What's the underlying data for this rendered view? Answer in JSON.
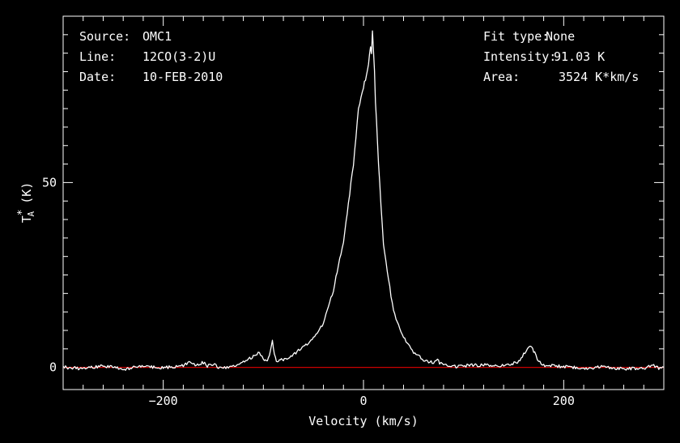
{
  "info": {
    "source_label": "Source:",
    "source_value": "OMC1",
    "line_label": "Line:",
    "line_value": "12CO(3-2)U",
    "date_label": "Date:",
    "date_value": "10-FEB-2010",
    "fit_label": "Fit type:",
    "fit_value": "None",
    "intensity_label": "Intensity:",
    "intensity_value": "91.03 K",
    "area_label": "Area:",
    "area_value": "3524 K*km/s"
  },
  "chart_data": {
    "type": "line",
    "title": "",
    "xlabel": "Velocity (km/s)",
    "ylabel": "T_A* (K)",
    "xlim": [
      -300,
      300
    ],
    "ylim": [
      -6,
      95
    ],
    "x_ticks": [
      -200,
      0,
      200
    ],
    "x_tick_labels": [
      "−200",
      "0",
      "200"
    ],
    "y_ticks": [
      0,
      50
    ],
    "y_tick_labels": [
      "0",
      "50"
    ],
    "grid": false,
    "colors": {
      "background": "#000000",
      "axes": "#ffffff",
      "spectrum": "#ffffff",
      "baseline": "#cc0000"
    },
    "series": [
      {
        "x": [
          -300,
          -280,
          -260,
          -240,
          -220,
          -200,
          -180,
          -172,
          -168,
          -160,
          -156,
          -150,
          -146,
          -140,
          -130,
          -120,
          -110,
          -104,
          -100,
          -97,
          -94,
          -91,
          -89,
          -87,
          -85,
          -82,
          -79,
          -75,
          -70,
          -60,
          -50,
          -40,
          -30,
          -20,
          -10,
          -5,
          0,
          3,
          5,
          7,
          8,
          9,
          10,
          11,
          12,
          15,
          20,
          30,
          40,
          50,
          60,
          70,
          74,
          76,
          80,
          90,
          100,
          120,
          140,
          155,
          160,
          165,
          168,
          171,
          175,
          180,
          200,
          220,
          240,
          260,
          280,
          290,
          295,
          300
        ],
        "values": [
          0,
          -0.3,
          0.4,
          -0.5,
          0.3,
          -0.2,
          0.6,
          1.5,
          0.4,
          1.3,
          0.4,
          1.0,
          0.2,
          -0.3,
          0.5,
          1.5,
          3,
          4,
          2,
          1.5,
          3.5,
          7,
          4,
          1.5,
          1.5,
          2,
          2,
          2.5,
          3.5,
          5.5,
          8,
          12,
          21,
          34,
          55,
          70,
          76,
          79,
          82,
          87,
          85,
          91,
          85,
          80,
          72,
          55,
          33,
          15,
          8,
          4,
          2,
          1.2,
          2.5,
          1.2,
          0.5,
          0.2,
          0.5,
          0.6,
          0.4,
          1.5,
          3.5,
          5.5,
          5.5,
          4,
          1.5,
          0.4,
          0.3,
          -0.3,
          0.2,
          -0.4,
          -0.2,
          0.6,
          -0.4,
          0
        ]
      }
    ],
    "baseline_y": 0
  }
}
